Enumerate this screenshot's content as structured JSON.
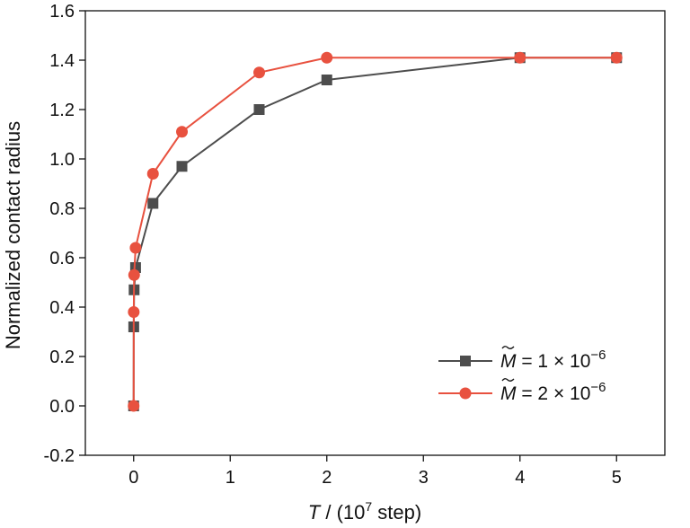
{
  "chart_data": {
    "type": "line",
    "title": "",
    "xlabel": {
      "italic": "T",
      "pre_sup": " / (10",
      "sup": "7",
      "post_sup": " step)"
    },
    "ylabel": "Normalized contact radius",
    "xlim": [
      -0.5,
      5.5
    ],
    "ylim": [
      -0.2,
      1.6
    ],
    "xticks": [
      0,
      1,
      2,
      3,
      4,
      5
    ],
    "yticks": [
      -0.2,
      0.0,
      0.2,
      0.4,
      0.6,
      0.8,
      1.0,
      1.2,
      1.4,
      1.6
    ],
    "ytick_labels": [
      "-0.2",
      "0.0",
      "0.2",
      "0.4",
      "0.6",
      "0.8",
      "1.0",
      "1.2",
      "1.4",
      "1.6"
    ],
    "grid": false,
    "legend_position": "bottom-right",
    "series": [
      {
        "name": "M̃ = 1 × 10⁻⁶",
        "legend": {
          "symbol": "M",
          "middle": " = 1 × 10",
          "exp": "−6"
        },
        "color": "#4d4d4d",
        "marker": "square",
        "x": [
          0,
          0.001,
          0.005,
          0.02,
          0.2,
          0.5,
          1.3,
          2,
          4,
          5
        ],
        "y": [
          0.0,
          0.32,
          0.47,
          0.56,
          0.82,
          0.97,
          1.2,
          1.32,
          1.41,
          1.41
        ]
      },
      {
        "name": "M̃ = 2 × 10⁻⁶",
        "legend": {
          "symbol": "M",
          "middle": " = 2 × 10",
          "exp": "−6"
        },
        "color": "#e8513f",
        "marker": "circle",
        "x": [
          0,
          0.001,
          0.005,
          0.02,
          0.2,
          0.5,
          1.3,
          2,
          4,
          5
        ],
        "y": [
          0.0,
          0.38,
          0.53,
          0.64,
          0.94,
          1.11,
          1.35,
          1.41,
          1.41,
          1.41
        ]
      }
    ]
  }
}
